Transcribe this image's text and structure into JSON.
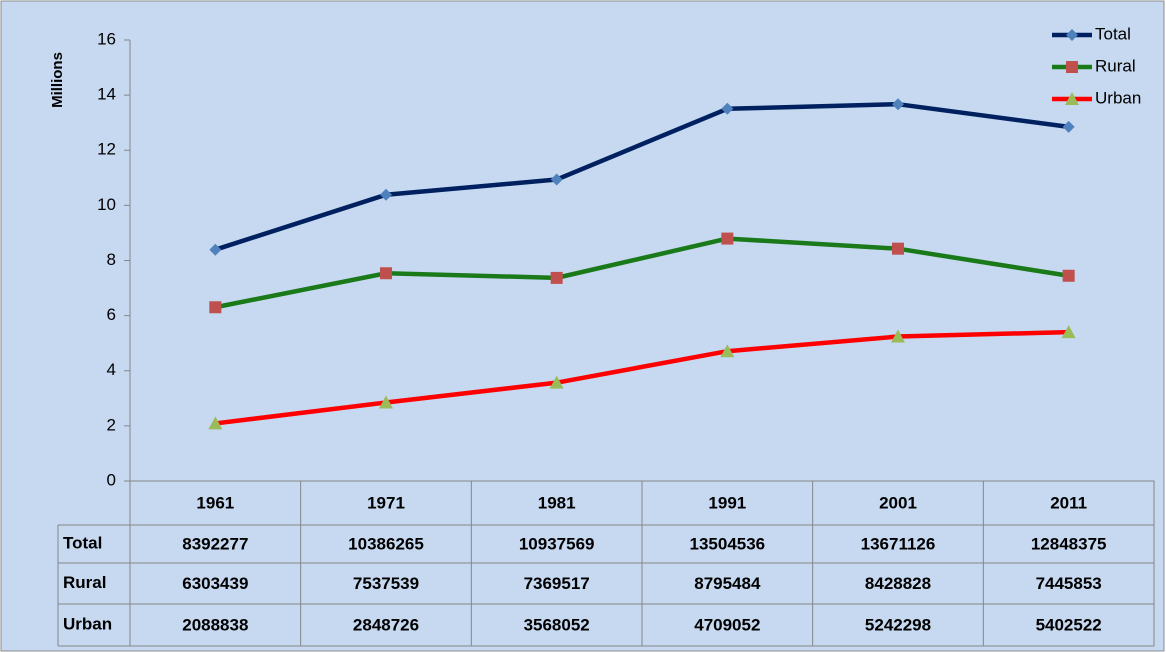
{
  "chart_data": {
    "type": "line",
    "y_label": "Millions",
    "categories": [
      "1961",
      "1971",
      "1981",
      "1991",
      "2001",
      "2011"
    ],
    "series": [
      {
        "name": "Total",
        "color": "#002060",
        "marker_color": "#4f81bd",
        "marker": "diamond",
        "values": [
          8.392277,
          10.386265,
          10.937569,
          13.504536,
          13.671126,
          12.848375
        ],
        "value_labels": [
          "8392277",
          "10386265",
          "10937569",
          "13504536",
          "13671126",
          "12848375"
        ]
      },
      {
        "name": "Rural",
        "color": "#1a7a1a",
        "marker_color": "#c0504d",
        "marker": "square",
        "values": [
          6.303439,
          7.537539,
          7.369517,
          8.795484,
          8.428828,
          7.445853
        ],
        "value_labels": [
          "6303439",
          "7537539",
          "7369517",
          "8795484",
          "8428828",
          "7445853"
        ]
      },
      {
        "name": "Urban",
        "color": "#ff0000",
        "marker_color": "#9bbb59",
        "marker": "triangle",
        "values": [
          2.088838,
          2.848726,
          3.568052,
          4.709052,
          5.242298,
          5.402522
        ],
        "value_labels": [
          "2088838",
          "2848726",
          "3568052",
          "4709052",
          "5242298",
          "5402522"
        ]
      }
    ],
    "ylim": [
      0,
      16
    ],
    "yticks": [
      0,
      2,
      4,
      6,
      8,
      10,
      12,
      14,
      16
    ],
    "grid": false,
    "legend": "top-right"
  }
}
